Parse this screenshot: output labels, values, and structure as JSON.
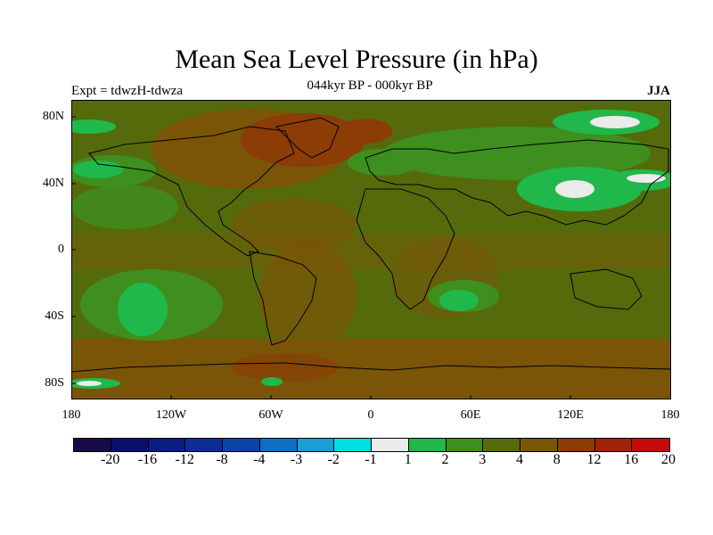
{
  "title": "Mean Sea Level Pressure (in hPa)",
  "subtitle": "044kyr BP - 000kyr BP",
  "experiment": "Expt = tdwzH-tdwza",
  "season": "JJA",
  "lat_ticks": [
    "80N",
    "40N",
    "0",
    "40S",
    "80S"
  ],
  "lon_ticks": [
    "180",
    "120W",
    "60W",
    "0",
    "60E",
    "120E",
    "180"
  ],
  "colorbar": {
    "colors": [
      "#1a0a4a",
      "#0b0f6b",
      "#0a1d82",
      "#0a2e96",
      "#0a44a6",
      "#0f6fc4",
      "#1a9ed3",
      "#00e0e0",
      "#ebebeb",
      "#20b84a",
      "#3f8f1e",
      "#556b0b",
      "#7a5407",
      "#8c3c05",
      "#a32205",
      "#c40a0a"
    ],
    "labels": [
      "-20",
      "-16",
      "-12",
      "-8",
      "-4",
      "-3",
      "-2",
      "-1",
      "1",
      "2",
      "3",
      "4",
      "8",
      "12",
      "16",
      "20"
    ]
  },
  "map_colors": {
    "base": "#6b6410",
    "olive": "#556b0b",
    "brown": "#7a5407",
    "darkbrown": "#8c3c05",
    "green": "#3f8f1e",
    "brightgreen": "#20b84a",
    "white": "#ebebeb"
  }
}
